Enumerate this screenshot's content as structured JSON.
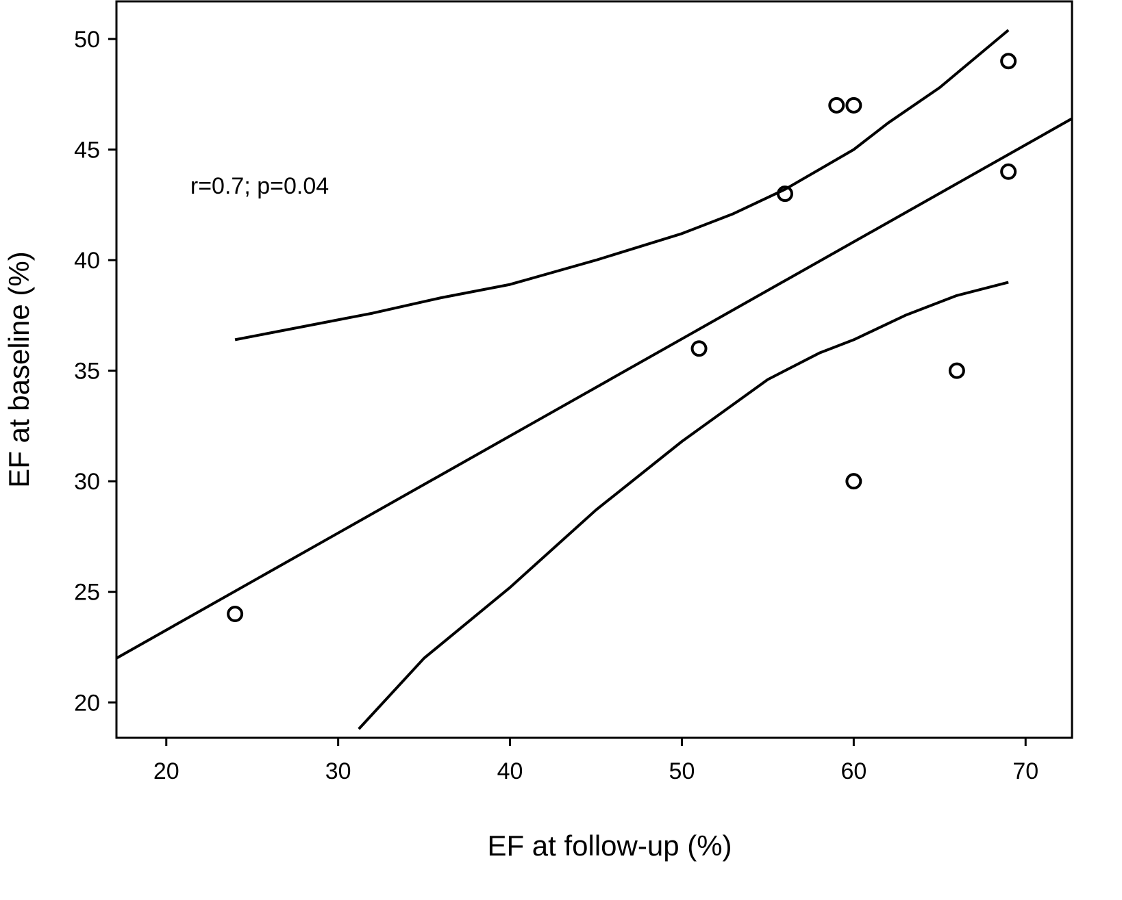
{
  "chart_data": {
    "type": "scatter",
    "title": "",
    "xlabel": "EF at follow-up (%)",
    "ylabel": "EF at baseline (%)",
    "xlim": [
      17.1,
      72.7
    ],
    "ylim": [
      18.4,
      51.7
    ],
    "xticks": [
      20,
      30,
      40,
      50,
      60,
      70
    ],
    "yticks": [
      20,
      25,
      30,
      35,
      40,
      45,
      50
    ],
    "grid": false,
    "annotation": {
      "text": "r=0.7; p=0.04",
      "x": 21.4,
      "y": 43.0
    },
    "points": [
      {
        "x": 24,
        "y": 24
      },
      {
        "x": 51,
        "y": 36
      },
      {
        "x": 56,
        "y": 43
      },
      {
        "x": 59,
        "y": 47
      },
      {
        "x": 60,
        "y": 47
      },
      {
        "x": 69,
        "y": 49
      },
      {
        "x": 69,
        "y": 44
      },
      {
        "x": 66,
        "y": 35
      },
      {
        "x": 60,
        "y": 30
      }
    ],
    "series": [
      {
        "name": "regression-line",
        "points": [
          [
            17.1,
            22.0
          ],
          [
            72.7,
            46.4
          ]
        ]
      },
      {
        "name": "upper-confidence-band",
        "points": [
          [
            24,
            36.4
          ],
          [
            28,
            37.0
          ],
          [
            32,
            37.6
          ],
          [
            36,
            38.3
          ],
          [
            40,
            38.9
          ],
          [
            45,
            40.0
          ],
          [
            50,
            41.2
          ],
          [
            53,
            42.1
          ],
          [
            56,
            43.2
          ],
          [
            58,
            44.1
          ],
          [
            60,
            45.0
          ],
          [
            62,
            46.2
          ],
          [
            65,
            47.8
          ],
          [
            67,
            49.1
          ],
          [
            69,
            50.4
          ]
        ]
      },
      {
        "name": "lower-confidence-band",
        "points": [
          [
            31.2,
            18.8
          ],
          [
            35,
            22.0
          ],
          [
            40,
            25.2
          ],
          [
            45,
            28.7
          ],
          [
            50,
            31.8
          ],
          [
            55,
            34.6
          ],
          [
            58,
            35.8
          ],
          [
            60,
            36.4
          ],
          [
            63,
            37.5
          ],
          [
            66,
            38.4
          ],
          [
            69,
            39.0
          ]
        ]
      }
    ]
  }
}
